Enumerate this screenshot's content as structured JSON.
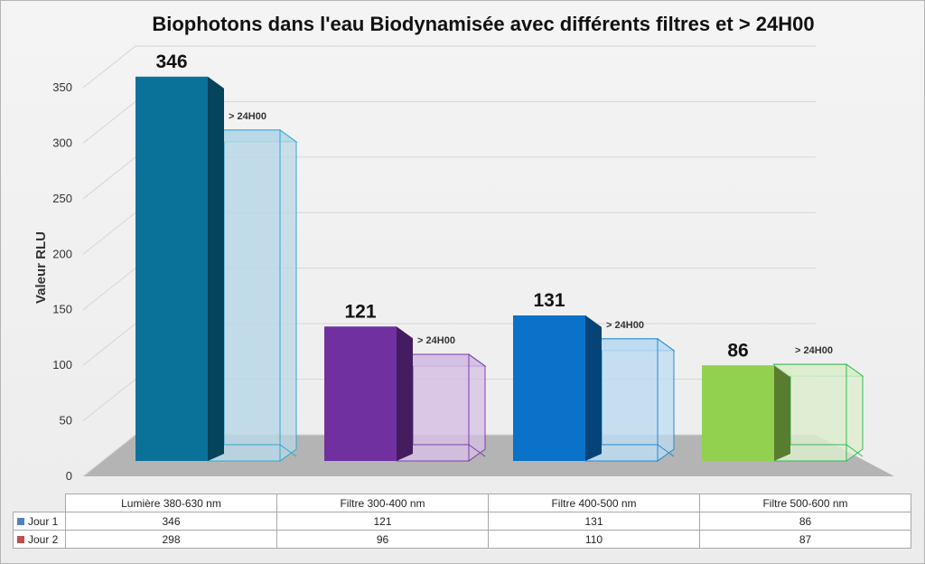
{
  "chart_data": {
    "type": "bar",
    "title": "Biophotons dans l'eau Biodynamisée avec différents filtres et > 24H00",
    "ylabel": "Valeur RLU",
    "ylim": [
      0,
      350
    ],
    "yticks": [
      "0",
      "50",
      "100",
      "150",
      "200",
      "250",
      "300",
      "350"
    ],
    "grid": true,
    "categories": [
      "Lumière 380-630 nm",
      "Filtre 300-400 nm",
      "Filtre 400-500 nm",
      "Filtre 500-600 nm"
    ],
    "series": [
      {
        "name": "Jour 1",
        "values": [
          346,
          121,
          131,
          86
        ],
        "value_labels": [
          "346",
          "121",
          "131",
          "86"
        ],
        "table_values": [
          "346",
          "121",
          "131",
          "86"
        ],
        "colors": [
          "#0a7299",
          "#7030a0",
          "#0a72c8",
          "#92d050"
        ],
        "legend_color": "#4f81bd"
      },
      {
        "name": "Jour 2",
        "values": [
          298,
          96,
          110,
          87
        ],
        "annotation": "> 24H00",
        "table_values": [
          "298",
          "96",
          "110",
          "87"
        ],
        "colors": [
          "#b9d8e6",
          "#d5c0e3",
          "#bddcf1",
          "#dcedcc"
        ],
        "edge_colors": [
          "#31a8cf",
          "#7d3fae",
          "#1f8ad6",
          "#33bb55"
        ],
        "legend_color": "#c0504d"
      }
    ]
  }
}
